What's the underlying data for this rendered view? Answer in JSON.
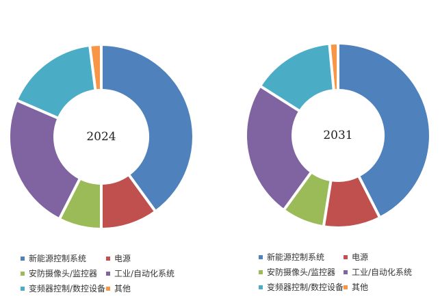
{
  "chart_data": [
    {
      "type": "pie",
      "title": "2024",
      "categories": [
        "新能源控制系统",
        "电源",
        "安防摄像头/监控器",
        "工业/自动化系统",
        "变频器控制/数控设备",
        "其他"
      ],
      "values": [
        40,
        10,
        7.5,
        24,
        16.5,
        2
      ],
      "colors": [
        "#4f81bd",
        "#c0504d",
        "#9bbb59",
        "#8064a2",
        "#4bacc6",
        "#f79646"
      ],
      "legend_position": "bottom"
    },
    {
      "type": "pie",
      "title": "2031",
      "categories": [
        "新能源控制系统",
        "电源",
        "安防摄像头/监控器",
        "工业/自动化系统",
        "变频器控制/数控设备",
        "其他"
      ],
      "values": [
        42.5,
        10,
        7.5,
        24,
        14.5,
        1.5
      ],
      "colors": [
        "#4f81bd",
        "#c0504d",
        "#9bbb59",
        "#8064a2",
        "#4bacc6",
        "#f79646"
      ],
      "legend_position": "bottom"
    }
  ]
}
